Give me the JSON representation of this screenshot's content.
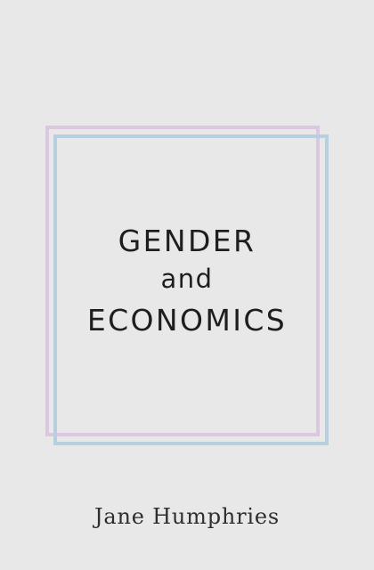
{
  "cover": {
    "title_line_1": "GENDER",
    "title_line_2": "and",
    "title_line_3": "ECONOMICS",
    "author": "Jane Humphries"
  },
  "colors": {
    "background": "#e8e8e8",
    "frame_pink": "#dcc7e1",
    "frame_blue": "#b8cfe0",
    "text": "#1e1e1e"
  }
}
